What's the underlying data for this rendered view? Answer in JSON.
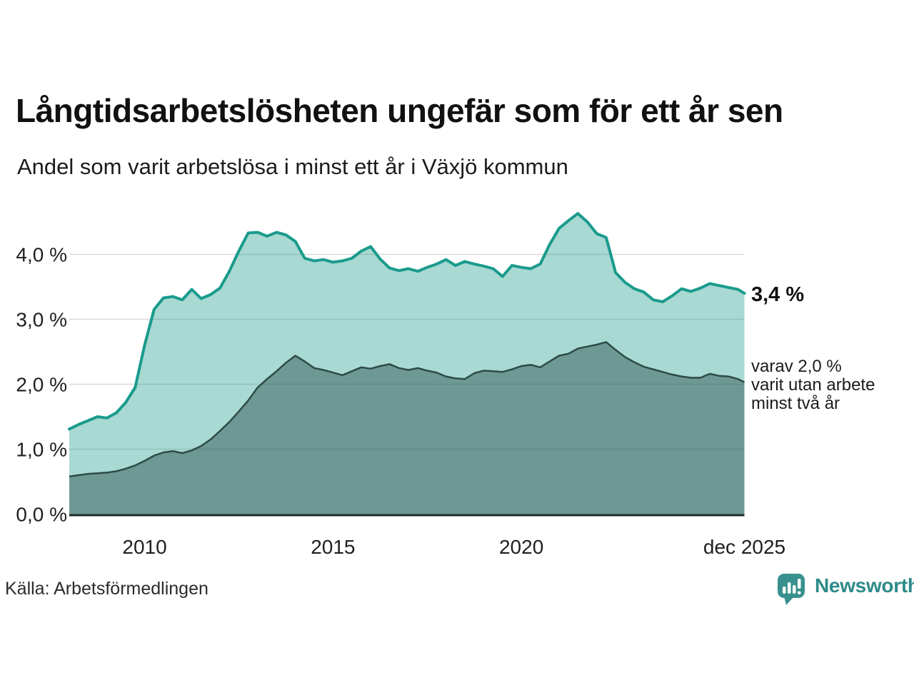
{
  "title": "Långtidsarbetslösheten ungefär som för ett år sen",
  "subtitle": "Andel som varit arbetslösa i minst ett år i Växjö kommun",
  "source": "Källa: Arbetsförmedlingen",
  "logo": {
    "text": "Newsworthy",
    "icon": "newsworthy-speech-bubble-bar-chart-icon"
  },
  "annotations": {
    "latest_total": "3,4 %",
    "two_year_note": "varav 2,0 %\nvarit utan arbete\nminst två år"
  },
  "colors": {
    "line_total": "#1a9b8c",
    "fill_total": "rgba(26,155,140,0.38)",
    "line_two_year": "#2e4b47",
    "fill_two_year": "rgba(35,68,63,0.43)",
    "gridline": "#d9d9d9",
    "axis_baseline": "#1d2b29",
    "tick_text": "#1f1f1f",
    "logo_teal": "#38918e",
    "logo_text_teal": "#2e8a8a"
  },
  "chart_data": {
    "type": "area",
    "title": "Långtidsarbetslösheten ungefär som för ett år sen",
    "subtitle": "Andel som varit arbetslösa i minst ett år i Växjö kommun",
    "unit": "%",
    "grid": true,
    "xlim": [
      2008,
      2025.92
    ],
    "ylim": [
      0,
      4.8
    ],
    "xticks": [
      {
        "label": "2010",
        "year": 2010
      },
      {
        "label": "2015",
        "year": 2015
      },
      {
        "label": "2020",
        "year": 2020
      },
      {
        "label": "dec 2025",
        "year": 2025.92
      }
    ],
    "yticks": [
      {
        "label": "0,0 %",
        "value": 0
      },
      {
        "label": "1,0 %",
        "value": 1
      },
      {
        "label": "2,0 %",
        "value": 2
      },
      {
        "label": "3,0 %",
        "value": 3
      },
      {
        "label": "4,0 %",
        "value": 4
      }
    ],
    "x": [
      2008,
      2008.25,
      2008.5,
      2008.75,
      2009,
      2009.25,
      2009.5,
      2009.75,
      2010,
      2010.25,
      2010.5,
      2010.75,
      2011,
      2011.25,
      2011.5,
      2011.75,
      2012,
      2012.25,
      2012.5,
      2012.75,
      2013,
      2013.25,
      2013.5,
      2013.75,
      2014,
      2014.25,
      2014.5,
      2014.75,
      2015,
      2015.25,
      2015.5,
      2015.75,
      2016,
      2016.25,
      2016.5,
      2016.75,
      2017,
      2017.25,
      2017.5,
      2017.75,
      2018,
      2018.25,
      2018.5,
      2018.75,
      2019,
      2019.25,
      2019.5,
      2019.75,
      2020,
      2020.25,
      2020.5,
      2020.75,
      2021,
      2021.25,
      2021.5,
      2021.75,
      2022,
      2022.25,
      2022.5,
      2022.75,
      2023,
      2023.25,
      2023.5,
      2023.75,
      2024,
      2024.25,
      2024.5,
      2024.75,
      2025,
      2025.25,
      2025.5,
      2025.75,
      2025.92
    ],
    "series": [
      {
        "name": "Andel som varit arbetslösa minst ett år",
        "end_label": "3,4 %",
        "values": [
          1.31,
          1.38,
          1.44,
          1.5,
          1.48,
          1.56,
          1.72,
          1.95,
          2.6,
          3.15,
          3.33,
          3.35,
          3.3,
          3.46,
          3.32,
          3.38,
          3.48,
          3.74,
          4.05,
          4.33,
          4.34,
          4.28,
          4.34,
          4.3,
          4.2,
          3.94,
          3.9,
          3.92,
          3.88,
          3.9,
          3.94,
          4.05,
          4.12,
          3.93,
          3.79,
          3.75,
          3.78,
          3.74,
          3.8,
          3.85,
          3.92,
          3.83,
          3.89,
          3.85,
          3.82,
          3.78,
          3.66,
          3.83,
          3.8,
          3.78,
          3.85,
          4.15,
          4.4,
          4.52,
          4.63,
          4.5,
          4.32,
          4.26,
          3.72,
          3.57,
          3.47,
          3.42,
          3.3,
          3.27,
          3.36,
          3.47,
          3.43,
          3.48,
          3.55,
          3.52,
          3.49,
          3.46,
          3.4
        ]
      },
      {
        "name": "varav varit utan arbete minst två år",
        "end_label": "varav 2,0 % varit utan arbete minst två år",
        "values": [
          0.58,
          0.6,
          0.62,
          0.63,
          0.64,
          0.66,
          0.7,
          0.75,
          0.82,
          0.9,
          0.95,
          0.97,
          0.94,
          0.98,
          1.05,
          1.15,
          1.28,
          1.42,
          1.58,
          1.75,
          1.95,
          2.08,
          2.2,
          2.33,
          2.44,
          2.35,
          2.25,
          2.22,
          2.18,
          2.14,
          2.2,
          2.26,
          2.24,
          2.28,
          2.31,
          2.25,
          2.22,
          2.25,
          2.21,
          2.18,
          2.12,
          2.09,
          2.08,
          2.17,
          2.21,
          2.2,
          2.19,
          2.23,
          2.28,
          2.3,
          2.26,
          2.35,
          2.44,
          2.47,
          2.55,
          2.58,
          2.61,
          2.65,
          2.53,
          2.42,
          2.34,
          2.27,
          2.23,
          2.19,
          2.15,
          2.12,
          2.1,
          2.1,
          2.16,
          2.13,
          2.12,
          2.08,
          2.03
        ]
      }
    ]
  }
}
